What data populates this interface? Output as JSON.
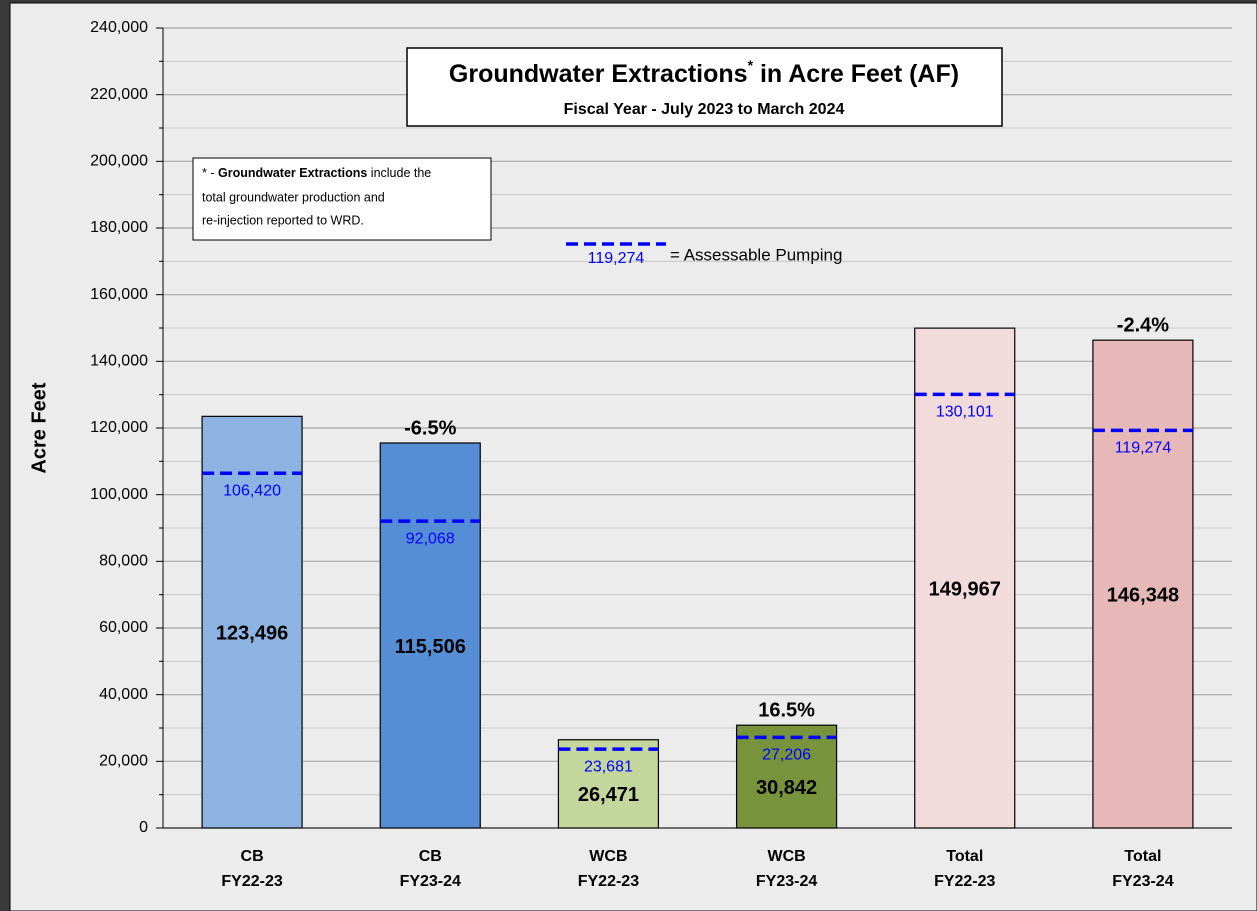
{
  "chart_data": {
    "type": "bar",
    "title": [
      "Groundwater Extractions",
      "*",
      " in Acre Feet (AF)"
    ],
    "subtitle": "Fiscal Year - July 2023 to March 2024",
    "ylabel": "Acre Feet",
    "note": {
      "first": [
        "* - ",
        "Groundwater Extractions",
        " include the"
      ],
      "lines": [
        "total groundwater production and",
        "re-injection reported to WRD."
      ]
    },
    "legend": {
      "sample_label": "119,274",
      "text": "=  Assessable Pumping",
      "color": "#0000ff"
    },
    "categories": [
      [
        "CB",
        "FY22-23"
      ],
      [
        "CB",
        "FY23-24"
      ],
      [
        "WCB",
        "FY22-23"
      ],
      [
        "WCB",
        "FY23-24"
      ],
      [
        "Total",
        "FY22-23"
      ],
      [
        "Total",
        "FY23-24"
      ]
    ],
    "values": [
      123496,
      115506,
      26471,
      30842,
      149967,
      146348
    ],
    "value_labels": [
      "123,496",
      "115,506",
      "26,471",
      "30,842",
      "149,967",
      "146,348"
    ],
    "colors": [
      "#8db3e2",
      "#558ed5",
      "#c3d69b",
      "#77933c",
      "#f2dcdb",
      "#e6b9b8"
    ],
    "assessable": [
      106420,
      92068,
      23681,
      27206,
      130101,
      119274
    ],
    "assessable_labels": [
      "106,420",
      "92,068",
      "23,681",
      "27,206",
      "130,101",
      "119,274"
    ],
    "change_labels": [
      null,
      "-6.5%",
      null,
      "16.5%",
      null,
      "-2.4%"
    ],
    "ylim": [
      0,
      240000
    ],
    "yticks": [
      {
        "value": 0,
        "label": "0"
      },
      {
        "value": 20000,
        "label": "20,000"
      },
      {
        "value": 40000,
        "label": "40,000"
      },
      {
        "value": 60000,
        "label": "60,000"
      },
      {
        "value": 80000,
        "label": "80,000"
      },
      {
        "value": 100000,
        "label": "100,000"
      },
      {
        "value": 120000,
        "label": "120,000"
      },
      {
        "value": 140000,
        "label": "140,000"
      },
      {
        "value": 160000,
        "label": "160,000"
      },
      {
        "value": 180000,
        "label": "180,000"
      },
      {
        "value": 200000,
        "label": "200,000"
      },
      {
        "value": 220000,
        "label": "220,000"
      },
      {
        "value": 240000,
        "label": "240,000"
      }
    ],
    "minor_yticks": [
      10000,
      30000,
      50000,
      70000,
      90000,
      110000,
      130000,
      150000,
      170000,
      190000,
      210000,
      230000
    ],
    "grid": true
  }
}
